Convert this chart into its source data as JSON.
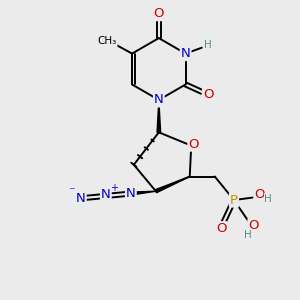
{
  "bg_color": "#ebebeb",
  "atom_colors": {
    "C": "#000000",
    "N": "#0000cc",
    "O": "#cc0000",
    "P": "#cc8800",
    "H": "#5a8a8a"
  },
  "bond_color": "#000000"
}
